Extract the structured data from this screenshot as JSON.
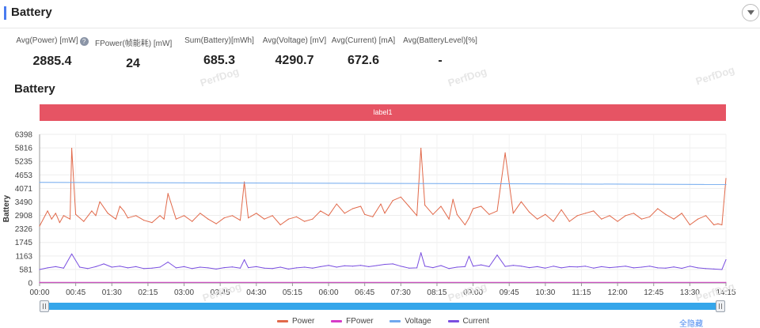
{
  "header": {
    "title": "Battery"
  },
  "stats": [
    {
      "label": "Avg(Power) [mW]",
      "value": "2885.4",
      "help": true
    },
    {
      "label": "FPower(帧能耗) [mW]",
      "value": "24"
    },
    {
      "label": "Sum(Battery)[mWh]",
      "value": "685.3"
    },
    {
      "label": "Avg(Voltage) [mV]",
      "value": "4290.7"
    },
    {
      "label": "Avg(Current) [mA]",
      "value": "672.6"
    },
    {
      "label": "Avg(BatteryLevel)[%]",
      "value": "-"
    }
  ],
  "section_title": "Battery",
  "label_band": "label1",
  "watermark": "PerfDog",
  "hide_all_label": "全隐藏",
  "colors": {
    "power": "#e1694a",
    "fpower": "#d63bc8",
    "voltage": "#6fa8ee",
    "current": "#7a4fe0",
    "band": "#e65464",
    "slider": "#35a6ea"
  },
  "chart_data": {
    "type": "line",
    "title": "",
    "ylabel": "Battery",
    "xlabel": "",
    "ylim": [
      0,
      6398
    ],
    "yticks": [
      "0",
      "581",
      "1163",
      "1745",
      "2326",
      "2908",
      "3490",
      "4071",
      "4653",
      "5235",
      "5816",
      "6398"
    ],
    "xlim_minutes": [
      0,
      855
    ],
    "xticks": [
      "00:00",
      "00:45",
      "01:30",
      "02:15",
      "03:00",
      "03:45",
      "04:30",
      "05:15",
      "06:00",
      "06:45",
      "07:30",
      "08:15",
      "09:00",
      "09:45",
      "10:30",
      "11:15",
      "12:00",
      "12:45",
      "13:30",
      "14:15"
    ],
    "series": [
      {
        "name": "Power",
        "x": [
          0,
          10,
          15,
          20,
          25,
          30,
          38,
          40,
          45,
          55,
          65,
          70,
          75,
          85,
          95,
          100,
          105,
          110,
          120,
          130,
          140,
          150,
          155,
          160,
          170,
          180,
          190,
          200,
          210,
          220,
          230,
          240,
          250,
          255,
          260,
          270,
          280,
          290,
          300,
          310,
          320,
          330,
          340,
          350,
          360,
          370,
          380,
          390,
          400,
          405,
          415,
          425,
          430,
          440,
          450,
          460,
          470,
          475,
          480,
          490,
          500,
          510,
          515,
          520,
          530,
          535,
          540,
          550,
          560,
          570,
          580,
          590,
          600,
          610,
          620,
          630,
          640,
          650,
          660,
          670,
          680,
          690,
          700,
          710,
          720,
          730,
          740,
          750,
          760,
          770,
          780,
          790,
          800,
          810,
          820,
          830,
          840,
          845,
          850,
          855
        ],
        "values": [
          2450,
          3100,
          2750,
          3000,
          2600,
          2900,
          2750,
          5800,
          2950,
          2650,
          3100,
          2900,
          3500,
          3000,
          2750,
          3300,
          3100,
          2800,
          2900,
          2700,
          2600,
          2900,
          2750,
          3850,
          2750,
          2900,
          2650,
          3000,
          2750,
          2550,
          2800,
          2900,
          2700,
          4350,
          2800,
          3000,
          2750,
          2900,
          2500,
          2750,
          2850,
          2650,
          2750,
          3100,
          2900,
          3400,
          3000,
          3200,
          3300,
          2950,
          2850,
          3400,
          3000,
          3550,
          3700,
          3300,
          2900,
          5800,
          3350,
          2950,
          3300,
          2750,
          3600,
          2950,
          2500,
          2800,
          3200,
          3300,
          2950,
          3100,
          5600,
          3000,
          3500,
          3050,
          2750,
          2950,
          2650,
          3150,
          2650,
          2900,
          3000,
          3100,
          2750,
          2900,
          2650,
          2900,
          3000,
          2750,
          2850,
          3200,
          2950,
          2750,
          3000,
          2500,
          2750,
          2900,
          2500,
          2550,
          2500,
          4500
        ]
      },
      {
        "name": "FPower",
        "x": [
          0,
          855
        ],
        "values": [
          24,
          24
        ]
      },
      {
        "name": "Voltage",
        "x": [
          0,
          855
        ],
        "values": [
          4330,
          4240
        ]
      },
      {
        "name": "Current",
        "x": [
          0,
          10,
          20,
          30,
          40,
          50,
          60,
          70,
          80,
          90,
          100,
          110,
          120,
          130,
          140,
          150,
          160,
          170,
          180,
          190,
          200,
          210,
          220,
          230,
          240,
          250,
          255,
          260,
          270,
          280,
          290,
          300,
          310,
          320,
          330,
          340,
          350,
          360,
          370,
          380,
          390,
          400,
          410,
          420,
          430,
          440,
          450,
          460,
          470,
          475,
          480,
          490,
          500,
          510,
          520,
          530,
          535,
          540,
          550,
          560,
          570,
          580,
          590,
          600,
          610,
          620,
          630,
          640,
          650,
          660,
          670,
          680,
          690,
          700,
          710,
          720,
          730,
          740,
          750,
          760,
          770,
          780,
          790,
          800,
          810,
          820,
          830,
          840,
          850,
          855
        ],
        "values": [
          580,
          650,
          700,
          640,
          1250,
          680,
          620,
          700,
          820,
          680,
          720,
          650,
          700,
          620,
          640,
          680,
          900,
          650,
          700,
          620,
          680,
          650,
          600,
          660,
          690,
          640,
          1000,
          660,
          700,
          640,
          620,
          680,
          600,
          650,
          680,
          640,
          700,
          760,
          680,
          740,
          720,
          760,
          700,
          750,
          800,
          820,
          720,
          640,
          650,
          1300,
          720,
          660,
          750,
          620,
          680,
          700,
          1150,
          720,
          780,
          700,
          1200,
          710,
          760,
          720,
          660,
          700,
          640,
          720,
          650,
          700,
          690,
          720,
          640,
          700,
          660,
          690,
          720,
          650,
          680,
          720,
          650,
          640,
          690,
          630,
          720,
          650,
          620,
          600,
          580,
          1000
        ]
      }
    ]
  }
}
